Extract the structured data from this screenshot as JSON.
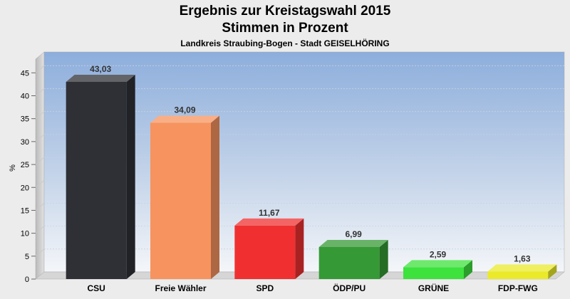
{
  "chart_data": {
    "type": "bar",
    "title": "Ergebnis zur Kreistagswahl 2015",
    "subtitle": "Stimmen in Prozent",
    "caption": "Landkreis Straubing-Bogen - Stadt GEISELHÖRING",
    "xlabel": "",
    "ylabel": "%",
    "ylim": [
      0,
      48
    ],
    "yticks": [
      0,
      5,
      10,
      15,
      20,
      25,
      30,
      35,
      40,
      45
    ],
    "grid": true,
    "categories": [
      "CSU",
      "Freie Wähler",
      "SPD",
      "ÖDP/PU",
      "GRÜNE",
      "FDP-FWG"
    ],
    "values": [
      43.03,
      34.09,
      11.67,
      6.99,
      2.59,
      1.63
    ],
    "value_labels": [
      "43,03",
      "34,09",
      "11,67",
      "6,99",
      "2,59",
      "1,63"
    ],
    "colors": [
      "#2e3036",
      "#f7935e",
      "#f03030",
      "#359a35",
      "#3de23d",
      "#eaea2a"
    ]
  }
}
